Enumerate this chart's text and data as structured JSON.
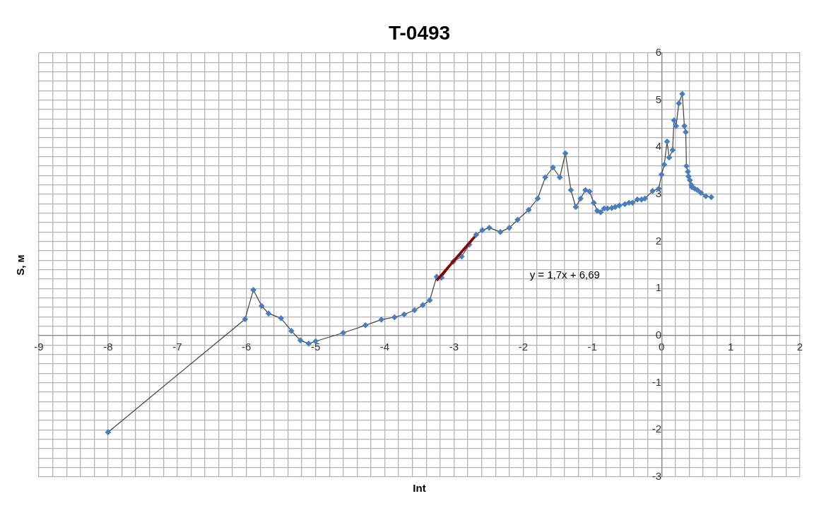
{
  "chart_data": {
    "type": "line",
    "title": "T-0493",
    "xlabel": "Int",
    "ylabel": "S, м",
    "grid": true,
    "legend": false,
    "marker": "diamond",
    "line_style": "solid",
    "xlim": [
      -9,
      2
    ],
    "ylim": [
      -3,
      6
    ],
    "xticks": [
      -9,
      {
        "value": -8.8,
        "label": null
      },
      {
        "value": -8.6,
        "label": null
      },
      {
        "value": -8.4,
        "label": null
      },
      {
        "value": -8.2,
        "label": null
      },
      -8,
      {
        "value": -7.8,
        "label": null
      },
      {
        "value": -7.6,
        "label": null
      },
      {
        "value": -7.4,
        "label": null
      },
      {
        "value": -7.2,
        "label": null
      },
      -7,
      {
        "value": -6.8,
        "label": null
      },
      {
        "value": -6.6,
        "label": null
      },
      {
        "value": -6.4,
        "label": null
      },
      {
        "value": -6.2,
        "label": null
      },
      -6,
      {
        "value": -5.8,
        "label": null
      },
      {
        "value": -5.6,
        "label": null
      },
      {
        "value": -5.4,
        "label": null
      },
      {
        "value": -5.2,
        "label": null
      },
      -5,
      {
        "value": -4.8,
        "label": null
      },
      {
        "value": -4.6,
        "label": null
      },
      {
        "value": -4.4,
        "label": null
      },
      {
        "value": -4.2,
        "label": null
      },
      -4,
      {
        "value": -3.8,
        "label": null
      },
      {
        "value": -3.6,
        "label": null
      },
      {
        "value": -3.4,
        "label": null
      },
      {
        "value": -3.2,
        "label": null
      },
      -3,
      {
        "value": -2.8,
        "label": null
      },
      {
        "value": -2.6,
        "label": null
      },
      {
        "value": -2.4,
        "label": null
      },
      {
        "value": -2.2,
        "label": null
      },
      -2,
      {
        "value": -1.8,
        "label": null
      },
      {
        "value": -1.6,
        "label": null
      },
      {
        "value": -1.4,
        "label": null
      },
      {
        "value": -1.2,
        "label": null
      },
      -1,
      {
        "value": -0.8,
        "label": null
      },
      {
        "value": -0.6,
        "label": null
      },
      {
        "value": -0.4,
        "label": null
      },
      {
        "value": -0.2,
        "label": null
      },
      0,
      {
        "value": 0.2,
        "label": null
      },
      {
        "value": 0.4,
        "label": null
      },
      {
        "value": 0.6,
        "label": null
      },
      {
        "value": 0.8,
        "label": null
      },
      1,
      {
        "value": 1.2,
        "label": null
      },
      {
        "value": 1.4,
        "label": null
      },
      {
        "value": 1.6,
        "label": null
      },
      {
        "value": 1.8,
        "label": null
      },
      2
    ],
    "yticks": [
      -3,
      {
        "value": -2.8,
        "label": null
      },
      {
        "value": -2.6,
        "label": null
      },
      {
        "value": -2.4,
        "label": null
      },
      {
        "value": -2.2,
        "label": null
      },
      -2,
      {
        "value": -1.8,
        "label": null
      },
      {
        "value": -1.6,
        "label": null
      },
      {
        "value": -1.4,
        "label": null
      },
      {
        "value": -1.2,
        "label": null
      },
      -1,
      {
        "value": -0.8,
        "label": null
      },
      {
        "value": -0.6,
        "label": null
      },
      {
        "value": -0.4,
        "label": null
      },
      {
        "value": -0.2,
        "label": null
      },
      0,
      {
        "value": 0.2,
        "label": null
      },
      {
        "value": 0.4,
        "label": null
      },
      {
        "value": 0.6,
        "label": null
      },
      {
        "value": 0.8,
        "label": null
      },
      1,
      {
        "value": 1.2,
        "label": null
      },
      {
        "value": 1.4,
        "label": null
      },
      {
        "value": 1.6,
        "label": null
      },
      {
        "value": 1.8,
        "label": null
      },
      2,
      {
        "value": 2.2,
        "label": null
      },
      {
        "value": 2.4,
        "label": null
      },
      {
        "value": 2.6,
        "label": null
      },
      {
        "value": 2.8,
        "label": null
      },
      3,
      {
        "value": 3.2,
        "label": null
      },
      {
        "value": 3.4,
        "label": null
      },
      {
        "value": 3.6,
        "label": null
      },
      {
        "value": 3.8,
        "label": null
      },
      4,
      {
        "value": 4.2,
        "label": null
      },
      {
        "value": 4.4,
        "label": null
      },
      {
        "value": 4.6,
        "label": null
      },
      {
        "value": 4.8,
        "label": null
      },
      5,
      {
        "value": 5.2,
        "label": null
      },
      {
        "value": 5.4,
        "label": null
      },
      {
        "value": 5.6,
        "label": null
      },
      {
        "value": 5.8,
        "label": null
      },
      6
    ],
    "annotations": [
      "y = 1,7x + 6,69"
    ],
    "series": [
      {
        "color": "#4a7ebb",
        "x": [
          -8,
          -6.02,
          -5.9,
          -5.78,
          -5.68,
          -5.5,
          -5.35,
          -5.22,
          -5.1,
          -5,
          -4.6,
          -4.28,
          -4.05,
          -3.86,
          -3.72,
          -3.57,
          -3.45,
          -3.35,
          -3.25,
          -3.18,
          -3.01,
          -2.89,
          -2.78,
          -2.68,
          -2.59,
          -2.49,
          -2.33,
          -2.2,
          -2.08,
          -1.92,
          -1.79,
          -1.68,
          -1.57,
          -1.47,
          -1.39,
          -1.31,
          -1.24,
          -1.17,
          -1.1,
          -1.04,
          -0.98,
          -0.93,
          -0.88,
          -0.83,
          -0.78,
          -0.72,
          -0.67,
          -0.61,
          -0.53,
          -0.47,
          -0.42,
          -0.35,
          -0.29,
          -0.24,
          -0.13,
          -0.04,
          0,
          0.04,
          0.08,
          0.11,
          0.16,
          0.18,
          0.21,
          0.25,
          0.3,
          0.33,
          0.35,
          0.36,
          0.38,
          0.39,
          0.41,
          0.43,
          0.44,
          0.48,
          0.52,
          0.57,
          0.64,
          0.72
        ],
        "values": [
          -2.05,
          0.35,
          0.97,
          0.63,
          0.47,
          0.37,
          0.1,
          -0.1,
          -0.17,
          -0.12,
          0.06,
          0.22,
          0.34,
          0.39,
          0.45,
          0.54,
          0.65,
          0.75,
          1.25,
          1.23,
          1.57,
          1.68,
          1.93,
          2.14,
          2.24,
          2.29,
          2.2,
          2.29,
          2.46,
          2.67,
          2.91,
          3.36,
          3.57,
          3.36,
          3.87,
          3.09,
          2.73,
          2.91,
          3.09,
          3.06,
          2.82,
          2.65,
          2.62,
          2.7,
          2.7,
          2.71,
          2.73,
          2.76,
          2.79,
          2.82,
          2.82,
          2.89,
          2.89,
          2.91,
          3.07,
          3.12,
          3.42,
          3.63,
          4.12,
          3.78,
          3.94,
          4.57,
          4.45,
          4.93,
          5.13,
          4.45,
          4.32,
          3.6,
          3.48,
          3.38,
          3.3,
          3.2,
          3.15,
          3.12,
          3.09,
          3.03,
          2.96,
          2.94
        ]
      },
      {
        "type": "line",
        "color": "#8b0000",
        "marker": "none",
        "x": [
          -3.25,
          -2.7
        ],
        "values": [
          1.17,
          2.1
        ]
      }
    ]
  }
}
